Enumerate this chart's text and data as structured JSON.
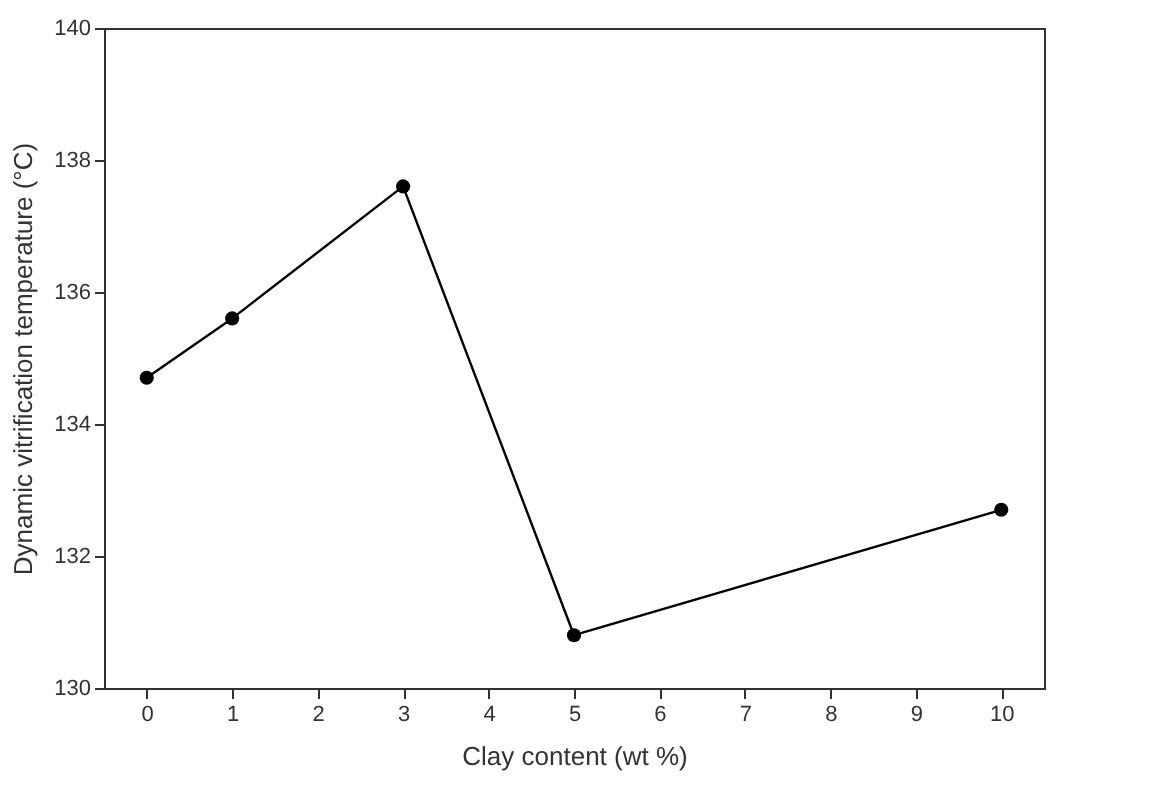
{
  "chart_data": {
    "type": "line",
    "xlabel": "Clay content (wt %)",
    "ylabel": "Dynamic vitrification temperature (°C)",
    "x": [
      0,
      1,
      3,
      5,
      10
    ],
    "series": [
      {
        "color": "#000000",
        "values": [
          134.7,
          135.6,
          137.6,
          130.8,
          132.7
        ]
      }
    ],
    "xlim": [
      -0.5,
      10.5
    ],
    "xticks": [
      0,
      1,
      2,
      3,
      4,
      5,
      6,
      7,
      8,
      9,
      10
    ],
    "ylim": [
      130,
      140
    ],
    "yticks": [
      130,
      132,
      134,
      136,
      138,
      140
    ],
    "grid": false,
    "legend": false,
    "marker": "circle",
    "line_style": "solid"
  }
}
